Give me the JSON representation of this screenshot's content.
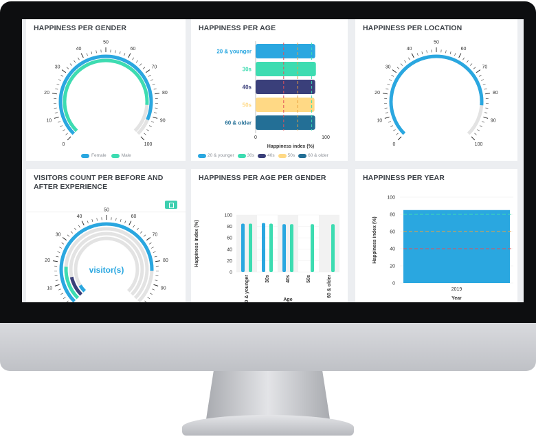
{
  "colors": {
    "female": "#2aa7e0",
    "male": "#3ddcb1",
    "age_20": "#2aa7e0",
    "age_30": "#3ddcb1",
    "age_40": "#3a3f7a",
    "age_50": "#ffd985",
    "age_60": "#236f96",
    "track": "#e3e3e3"
  },
  "cards": {
    "gender": {
      "title": "HAPPINESS PER GENDER",
      "legend": [
        "Female",
        "Male"
      ],
      "ticks": [
        "0",
        "10",
        "20",
        "30",
        "40",
        "50",
        "60",
        "70",
        "80",
        "90",
        "100"
      ]
    },
    "age": {
      "title": "HAPPINESS PER AGE",
      "xlabel": "Happiness index (%)",
      "xticks": [
        "0",
        "100"
      ],
      "legend": [
        "20 & younger",
        "30s",
        "40s",
        "50s",
        "60 & older"
      ]
    },
    "location": {
      "title": "HAPPINESS PER LOCATION",
      "ticks": [
        "0",
        "10",
        "20",
        "30",
        "40",
        "50",
        "60",
        "70",
        "80",
        "90",
        "100"
      ]
    },
    "visitors": {
      "title": "VISITORS COUNT PER BEFORE AND AFTER EXPERIENCE",
      "center_label": "visitor(s)",
      "ticks": [
        "0",
        "10",
        "20",
        "30",
        "40",
        "50",
        "60",
        "70",
        "80",
        "90",
        "100"
      ]
    },
    "age_gender": {
      "title": "HAPPINESS PER AGE PER GENDER",
      "ylabel": "Happiness index (%)",
      "xlabel": "Age",
      "yticks": [
        "0",
        "20",
        "40",
        "60",
        "80",
        "100"
      ]
    },
    "year": {
      "title": "HAPPINESS PER YEAR",
      "ylabel": "Happiness index (%)",
      "xlabel": "Year",
      "yticks": [
        "0",
        "20",
        "40",
        "60",
        "80",
        "100"
      ]
    }
  },
  "chart_data": [
    {
      "type": "gauge",
      "title": "HAPPINESS PER GENDER",
      "min": 0,
      "max": 100,
      "series": [
        {
          "name": "Female",
          "value": 92
        },
        {
          "name": "Male",
          "value": 85
        }
      ]
    },
    {
      "type": "bar",
      "orientation": "horizontal",
      "title": "HAPPINESS PER AGE",
      "categories": [
        "20 & younger",
        "30s",
        "40s",
        "50s",
        "60 & older"
      ],
      "values": [
        85,
        86,
        85,
        84,
        85
      ],
      "xlabel": "Happiness index (%)",
      "xlim": [
        0,
        100
      ],
      "reference_lines": [
        40,
        60,
        80
      ]
    },
    {
      "type": "gauge",
      "title": "HAPPINESS PER LOCATION",
      "min": 0,
      "max": 100,
      "value": 85
    },
    {
      "type": "gauge",
      "title": "VISITORS COUNT PER BEFORE AND AFTER EXPERIENCE",
      "min": 0,
      "max": 100,
      "series": [
        {
          "value": 84
        },
        {
          "value": 18
        },
        {
          "value": 12
        },
        {
          "value": 5
        }
      ]
    },
    {
      "type": "bar",
      "title": "HAPPINESS PER AGE PER GENDER",
      "categories": [
        "20 & younger",
        "30s",
        "40s",
        "50s",
        "60 & older"
      ],
      "series": [
        {
          "name": "Female",
          "values": [
            85,
            86,
            84,
            null,
            null
          ]
        },
        {
          "name": "Male",
          "values": [
            85,
            85,
            84,
            84,
            84
          ]
        }
      ],
      "xlabel": "Age",
      "ylabel": "Happiness index (%)",
      "ylim": [
        0,
        100
      ]
    },
    {
      "type": "bar",
      "title": "HAPPINESS PER YEAR",
      "categories": [
        "2019"
      ],
      "values": [
        85
      ],
      "xlabel": "Year",
      "ylabel": "Happiness index (%)",
      "ylim": [
        0,
        100
      ],
      "reference_lines": [
        40,
        60,
        80
      ]
    }
  ]
}
